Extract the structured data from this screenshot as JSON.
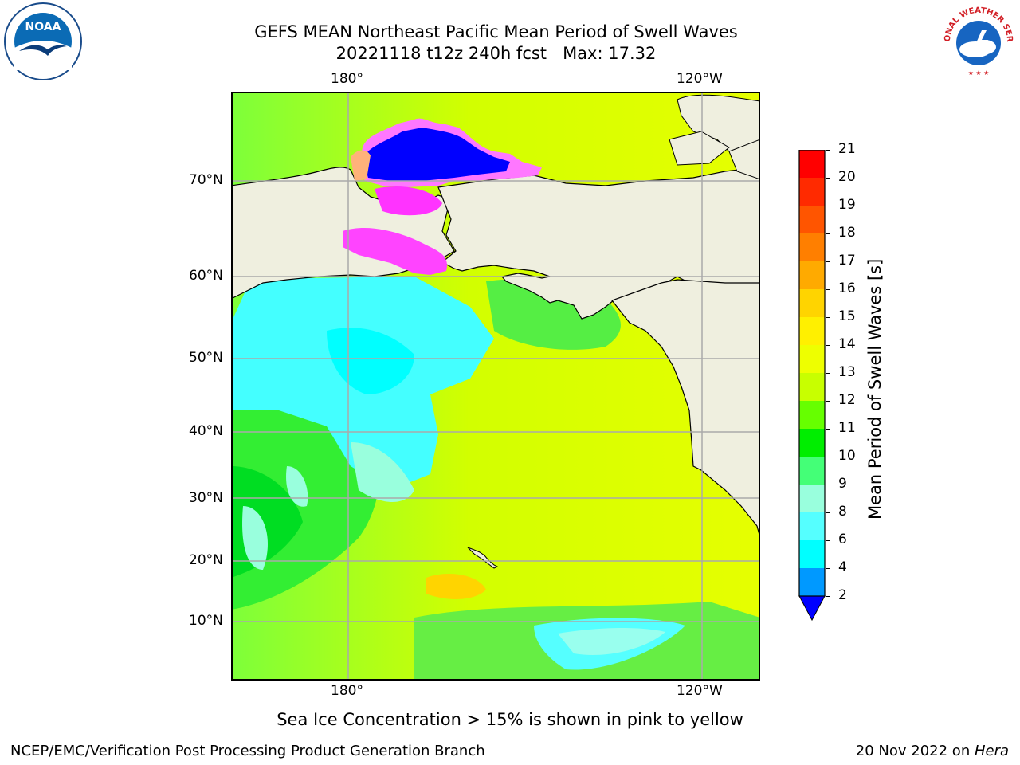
{
  "title": "GEFS MEAN Northeast Pacific Mean Period of Swell Waves",
  "subtitle": "20221118 t12z 240h fcst   Max: 17.32",
  "logos": {
    "left": "NOAA",
    "right": "NATIONAL WEATHER SERVICE"
  },
  "map": {
    "lon_labels_top": [
      "180°",
      "120°W"
    ],
    "lon_labels_bottom": [
      "180°",
      "120°W"
    ],
    "lat_labels": [
      "70°N",
      "60°N",
      "50°N",
      "40°N",
      "30°N",
      "20°N",
      "10°N"
    ]
  },
  "colorbar": {
    "title": "Mean Period of Swell Waves [s]",
    "ticks": [
      "21",
      "20",
      "19",
      "18",
      "17",
      "16",
      "15",
      "14",
      "13",
      "12",
      "11",
      "10",
      "9",
      "8",
      "6",
      "4",
      "2"
    ],
    "colors": [
      "#ff0000",
      "#ff2a00",
      "#ff5500",
      "#ff7f00",
      "#ffaa00",
      "#ffd400",
      "#fff000",
      "#eeff00",
      "#c8ff00",
      "#66ff00",
      "#00ee00",
      "#44ff77",
      "#99ffdd",
      "#55ffff",
      "#00ffff",
      "#0099ff",
      "#0000ff"
    ]
  },
  "note": "Sea Ice Concentration > 15% is shown in pink to yellow",
  "footer_left": "NCEP/EMC/Verification Post Processing Product Generation Branch",
  "footer_right_prefix": "20 Nov 2022 on ",
  "footer_right_host": "Hera"
}
